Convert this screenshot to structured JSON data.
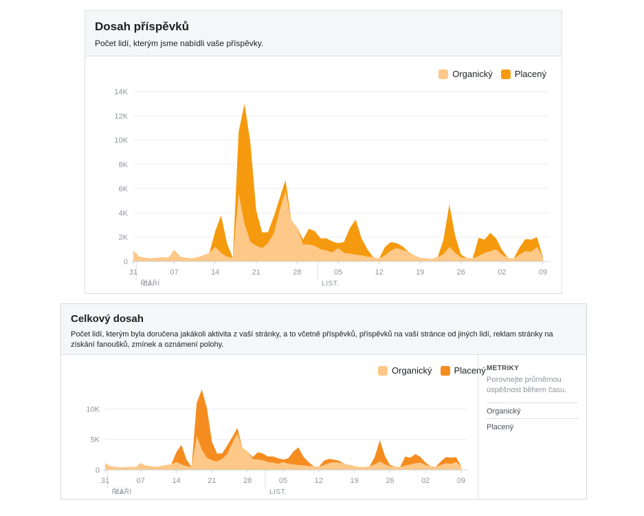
{
  "panel1": {
    "title": "Dosah příspěvků",
    "subtitle": "Počet lidí, kterým jsme nabídli vaše příspěvky."
  },
  "panel2": {
    "title": "Celkový dosah",
    "subtitle": "Počet lidí, kterým byla doručena jakákoli aktivita z vaší stránky, a to včetně příspěvků, příspěvků na vaší stránce od jiných lidí, reklam stránky na získání fanoušků, zmínek a oznámení polohy.",
    "sidebar": {
      "heading": "METRIKY",
      "description": "Porovnejte průměrnou úspěšnost během času.",
      "items": [
        "Organický",
        "Placený"
      ]
    }
  },
  "legend": {
    "organic": "Organický",
    "paid": "Placený"
  },
  "colors": {
    "organic": "#fdc888",
    "paid": "#f59a0e",
    "paid_total": "#f58c20",
    "grid": "#e9ebee"
  },
  "chart_data": [
    {
      "type": "area",
      "title": "Dosah příspěvků",
      "x_start_day": 31,
      "x_tick_labels": [
        "31",
        "07",
        "14",
        "21",
        "28",
        "05",
        "12",
        "19",
        "26",
        "02",
        "09"
      ],
      "month_labels": [
        "ZÁŘÍ",
        "ŘÍJ.",
        "LIST."
      ],
      "y_ticks": [
        0,
        2000,
        4000,
        6000,
        8000,
        10000,
        12000,
        14000
      ],
      "y_tick_labels": [
        "0",
        "2K",
        "4K",
        "6K",
        "8K",
        "10K",
        "12K",
        "14K"
      ],
      "ylim": [
        0,
        14000
      ],
      "legend_placement": "top-right",
      "series": [
        {
          "name": "Organický",
          "values": [
            900,
            400,
            300,
            250,
            300,
            350,
            300,
            950,
            400,
            300,
            250,
            350,
            500,
            700,
            1200,
            700,
            400,
            300,
            5600,
            3100,
            1600,
            1300,
            1100,
            1500,
            2300,
            4200,
            5800,
            3400,
            2800,
            1400,
            1400,
            1300,
            1000,
            900,
            750,
            1100,
            700,
            650,
            550,
            500,
            400,
            350,
            250,
            500,
            900,
            1100,
            950,
            800,
            500,
            300,
            250,
            200,
            350,
            600,
            1200,
            700,
            350,
            300,
            250,
            450,
            700,
            850,
            1000,
            550,
            300,
            250,
            550,
            850,
            800,
            1200,
            300
          ]
        },
        {
          "name": "Placený",
          "values": [
            0,
            0,
            0,
            0,
            0,
            0,
            0,
            0,
            0,
            0,
            0,
            0,
            0,
            0,
            1300,
            3100,
            1100,
            0,
            5100,
            9900,
            8200,
            2900,
            1300,
            900,
            1400,
            1000,
            900,
            0,
            0,
            400,
            1300,
            1200,
            900,
            1000,
            900,
            400,
            900,
            2100,
            2900,
            1400,
            600,
            0,
            0,
            700,
            700,
            400,
            300,
            0,
            0,
            0,
            0,
            0,
            0,
            1200,
            3500,
            1400,
            200,
            0,
            0,
            1500,
            1100,
            1500,
            900,
            400,
            0,
            0,
            600,
            1000,
            1000,
            800,
            0
          ]
        }
      ]
    },
    {
      "type": "area",
      "title": "Celkový dosah",
      "x_start_day": 31,
      "x_tick_labels": [
        "31",
        "07",
        "14",
        "21",
        "28",
        "05",
        "12",
        "19",
        "26",
        "02",
        "09"
      ],
      "month_labels": [
        "ZÁŘÍ",
        "ŘÍJ.",
        "LIST."
      ],
      "y_ticks": [
        0,
        5000,
        10000
      ],
      "y_tick_labels": [
        "0",
        "5K",
        "10K"
      ],
      "ylim": [
        0,
        14000
      ],
      "legend_placement": "top-right",
      "series": [
        {
          "name": "Organický",
          "values": [
            1100,
            600,
            500,
            400,
            450,
            500,
            450,
            1100,
            700,
            600,
            500,
            600,
            800,
            900,
            1300,
            900,
            600,
            500,
            5600,
            3300,
            2000,
            1600,
            1400,
            1800,
            2600,
            4400,
            6000,
            3600,
            3000,
            1800,
            1700,
            1600,
            1300,
            1200,
            1000,
            1300,
            1000,
            900,
            800,
            750,
            650,
            600,
            500,
            800,
            1100,
            1300,
            1200,
            1000,
            800,
            600,
            500,
            450,
            600,
            900,
            1400,
            900,
            600,
            550,
            500,
            700,
            900,
            1100,
            1200,
            800,
            600,
            500,
            800,
            1100,
            1000,
            1300,
            600
          ]
        },
        {
          "name": "Placený",
          "values": [
            0,
            0,
            0,
            0,
            0,
            0,
            0,
            0,
            0,
            0,
            0,
            0,
            0,
            0,
            1600,
            3200,
            1100,
            0,
            5400,
            9900,
            8200,
            3000,
            1300,
            900,
            1400,
            1000,
            900,
            0,
            0,
            300,
            1200,
            1100,
            900,
            1000,
            900,
            400,
            900,
            2100,
            2900,
            1400,
            600,
            0,
            0,
            700,
            700,
            400,
            300,
            0,
            0,
            0,
            0,
            0,
            0,
            1200,
            3500,
            1400,
            200,
            0,
            0,
            1500,
            1100,
            1500,
            900,
            400,
            0,
            0,
            600,
            1000,
            1000,
            800,
            0
          ]
        }
      ]
    }
  ]
}
